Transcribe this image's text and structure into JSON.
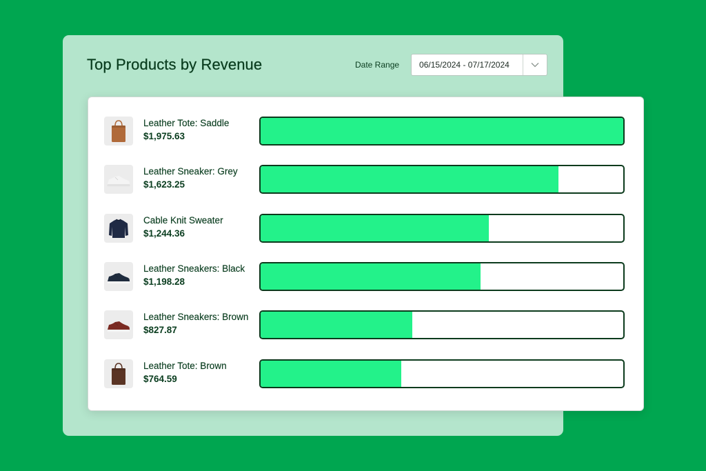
{
  "header": {
    "title": "Top Products by Revenue",
    "date_range_label": "Date Range",
    "date_range_value": "06/15/2024 - 07/17/2024"
  },
  "colors": {
    "background": "#00a650",
    "panel": "#b4e5cc",
    "bar_fill": "#23f28a",
    "bar_border": "#0b3a1c",
    "text": "#0a3d1f"
  },
  "chart_data": {
    "type": "bar",
    "orientation": "horizontal",
    "categories": [
      "Leather Tote: Saddle",
      "Leather Sneaker: Grey",
      "Cable Knit Sweater",
      "Leather Sneakers: Black",
      "Leather Sneakers: Brown",
      "Leather Tote: Brown"
    ],
    "values": [
      1975.63,
      1623.25,
      1244.36,
      1198.28,
      827.87,
      764.59
    ],
    "xlim": [
      0,
      1975.63
    ]
  },
  "products": [
    {
      "name": "Leather Tote: Saddle",
      "revenue": "$1,975.63",
      "thumb_icon": "tote-bag-icon",
      "thumb_color": "#b06a3a"
    },
    {
      "name": "Leather Sneaker: Grey",
      "revenue": "$1,623.25",
      "thumb_icon": "sneaker-icon",
      "thumb_color": "#f4f4f4"
    },
    {
      "name": "Cable Knit Sweater",
      "revenue": "$1,244.36",
      "thumb_icon": "sweater-icon",
      "thumb_color": "#1f2a44"
    },
    {
      "name": "Leather Sneakers: Black",
      "revenue": "$1,198.28",
      "thumb_icon": "sneaker-icon",
      "thumb_color": "#1e2b3d"
    },
    {
      "name": "Leather Sneakers: Brown",
      "revenue": "$827.87",
      "thumb_icon": "sneaker-icon",
      "thumb_color": "#7a2a22"
    },
    {
      "name": "Leather Tote: Brown",
      "revenue": "$764.59",
      "thumb_icon": "tote-bag-icon",
      "thumb_color": "#5a3424"
    }
  ]
}
